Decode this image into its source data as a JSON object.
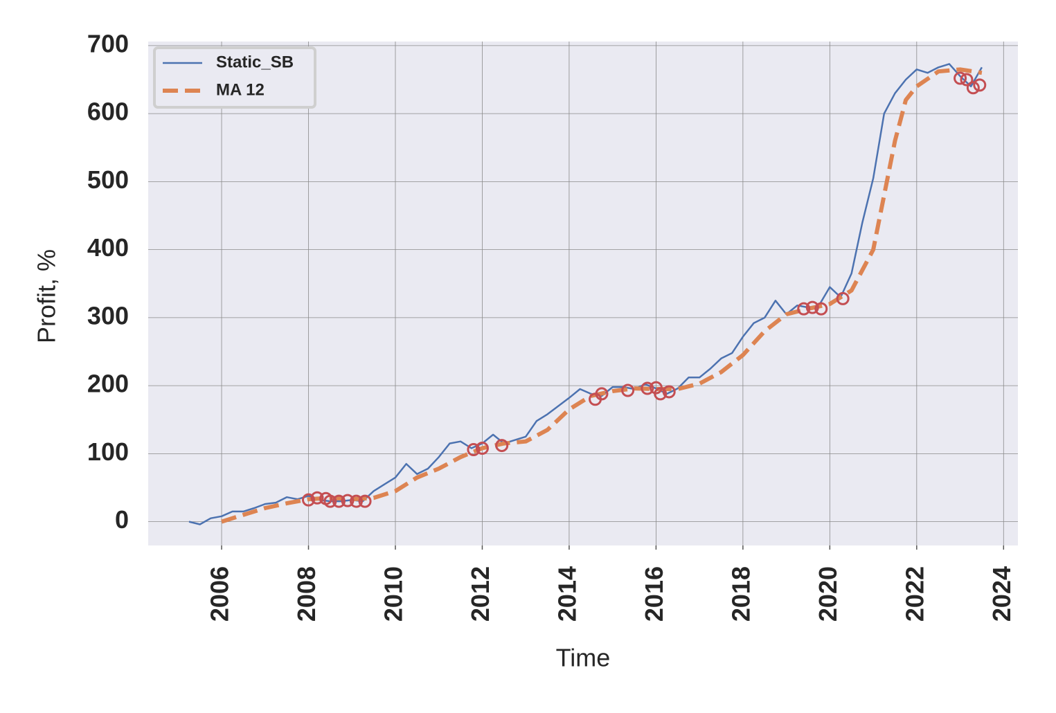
{
  "chart_data": {
    "type": "line",
    "xlabel": "Time",
    "ylabel": "Profit, %",
    "xlim": [
      2004.31,
      2024.33
    ],
    "ylim": [
      -35,
      706
    ],
    "xticks": [
      2006,
      2008,
      2010,
      2012,
      2014,
      2016,
      2018,
      2020,
      2022,
      2024
    ],
    "yticks": [
      0,
      100,
      200,
      300,
      400,
      500,
      600,
      700
    ],
    "grid": true,
    "legend": "upper left",
    "series": [
      {
        "name": "Static_SB",
        "color": "#4c72b0",
        "style": "solid",
        "x": [
          2005.25,
          2005.5,
          2005.75,
          2006.0,
          2006.25,
          2006.5,
          2006.75,
          2007.0,
          2007.25,
          2007.5,
          2007.75,
          2008.0,
          2008.25,
          2008.5,
          2008.75,
          2009.0,
          2009.25,
          2009.5,
          2009.75,
          2010.0,
          2010.25,
          2010.5,
          2010.75,
          2011.0,
          2011.25,
          2011.5,
          2011.75,
          2012.0,
          2012.25,
          2012.5,
          2012.75,
          2013.0,
          2013.25,
          2013.5,
          2013.75,
          2014.0,
          2014.25,
          2014.5,
          2014.75,
          2015.0,
          2015.25,
          2015.5,
          2015.75,
          2016.0,
          2016.25,
          2016.5,
          2016.75,
          2017.0,
          2017.25,
          2017.5,
          2017.75,
          2018.0,
          2018.25,
          2018.5,
          2018.75,
          2019.0,
          2019.25,
          2019.5,
          2019.75,
          2020.0,
          2020.25,
          2020.5,
          2020.75,
          2021.0,
          2021.25,
          2021.5,
          2021.75,
          2022.0,
          2022.25,
          2022.5,
          2022.75,
          2023.0,
          2023.25,
          2023.5
        ],
        "values": [
          0,
          -4,
          5,
          8,
          15,
          15,
          20,
          26,
          28,
          36,
          33,
          38,
          32,
          30,
          30,
          32,
          30,
          45,
          55,
          65,
          85,
          70,
          78,
          95,
          115,
          118,
          108,
          115,
          128,
          115,
          120,
          125,
          148,
          158,
          170,
          182,
          195,
          188,
          185,
          198,
          198,
          195,
          202,
          196,
          188,
          196,
          212,
          212,
          225,
          240,
          248,
          272,
          292,
          300,
          325,
          305,
          318,
          315,
          318,
          345,
          330,
          365,
          440,
          505,
          600,
          630,
          650,
          665,
          660,
          668,
          673,
          655,
          640,
          668
        ]
      },
      {
        "name": "MA 12",
        "color": "#dd8452",
        "style": "dashed",
        "x": [
          2006.0,
          2006.5,
          2007.0,
          2007.5,
          2008.0,
          2008.5,
          2009.0,
          2009.5,
          2010.0,
          2010.5,
          2011.0,
          2011.5,
          2012.0,
          2012.5,
          2013.0,
          2013.5,
          2014.0,
          2014.5,
          2015.0,
          2015.5,
          2016.0,
          2016.5,
          2017.0,
          2017.5,
          2018.0,
          2018.5,
          2019.0,
          2019.5,
          2020.0,
          2020.5,
          2021.0,
          2021.25,
          2021.5,
          2021.75,
          2022.0,
          2022.5,
          2023.0,
          2023.5
        ],
        "values": [
          0,
          10,
          20,
          27,
          33,
          35,
          33,
          35,
          45,
          65,
          78,
          95,
          108,
          115,
          118,
          135,
          165,
          185,
          192,
          196,
          195,
          195,
          203,
          220,
          245,
          280,
          305,
          313,
          320,
          340,
          400,
          480,
          560,
          620,
          640,
          662,
          665,
          660
        ]
      },
      {
        "color": "#c44e52",
        "style": "circle",
        "x": [
          2008.0,
          2008.2,
          2008.4,
          2008.5,
          2008.7,
          2008.9,
          2009.1,
          2009.3,
          2011.8,
          2012.0,
          2012.45,
          2014.6,
          2014.75,
          2015.35,
          2015.8,
          2016.0,
          2016.1,
          2016.3,
          2019.4,
          2019.6,
          2019.8,
          2020.3,
          2023.0,
          2023.15,
          2023.3,
          2023.45
        ],
        "values": [
          32,
          35,
          34,
          30,
          30,
          31,
          30,
          30,
          106,
          108,
          112,
          180,
          188,
          193,
          196,
          197,
          188,
          191,
          313,
          315,
          313,
          328,
          652,
          650,
          638,
          642
        ]
      }
    ]
  }
}
